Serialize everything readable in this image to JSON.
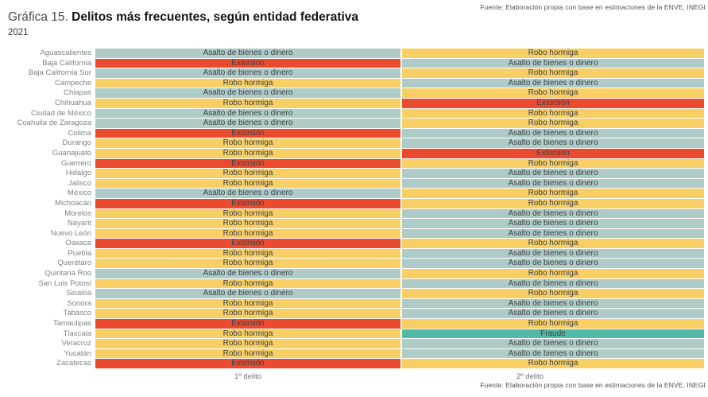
{
  "source": {
    "top": "Fuente: Elaboración propia con base en estimaciones de la ENVE, INEGI",
    "bottom": "Fuente: Elaboración propia con base en estimaciones de la ENVE, INEGI"
  },
  "title": {
    "prefix": "Gráfica 15.",
    "main": "Delitos más frecuentes, según entidad federativa",
    "subtitle": "2021"
  },
  "chart_data": {
    "type": "heatmap",
    "title": "Delitos más frecuentes, según entidad federativa",
    "subtitle": "2021",
    "columns": [
      "1º delito",
      "2º delito"
    ],
    "legend_colors": {
      "Asalto de bienes o dinero": "#aecbc8",
      "Extorsión": "#ea4b2f",
      "Robo hormiga": "#f8cf64",
      "Fraude": "#52b8a8"
    },
    "rows": [
      {
        "state": "Aguascalientes",
        "delito1": "Asalto de bienes o dinero",
        "delito2": "Robo hormiga"
      },
      {
        "state": "Baja California",
        "delito1": "Extorsión",
        "delito2": "Asalto de bienes o dinero"
      },
      {
        "state": "Baja California Sur",
        "delito1": "Asalto de bienes o dinero",
        "delito2": "Robo hormiga"
      },
      {
        "state": "Campeche",
        "delito1": "Robo hormiga",
        "delito2": "Asalto de bienes o dinero"
      },
      {
        "state": "Chiapas",
        "delito1": "Asalto de bienes o dinero",
        "delito2": "Robo hormiga"
      },
      {
        "state": "Chihuahua",
        "delito1": "Robo hormiga",
        "delito2": "Extorsión"
      },
      {
        "state": "Ciudad de México",
        "delito1": "Asalto de bienes o dinero",
        "delito2": "Robo hormiga"
      },
      {
        "state": "Coahuila de Zaragoza",
        "delito1": "Asalto de bienes o dinero",
        "delito2": "Robo hormiga"
      },
      {
        "state": "Colima",
        "delito1": "Extorsión",
        "delito2": "Asalto de bienes o dinero"
      },
      {
        "state": "Durango",
        "delito1": "Robo hormiga",
        "delito2": "Asalto de bienes o dinero"
      },
      {
        "state": "Guanajuato",
        "delito1": "Robo hormiga",
        "delito2": "Extorsión"
      },
      {
        "state": "Guerrero",
        "delito1": "Extorsión",
        "delito2": "Robo hormiga"
      },
      {
        "state": "Hidalgo",
        "delito1": "Robo hormiga",
        "delito2": "Asalto de bienes o dinero"
      },
      {
        "state": "Jalisco",
        "delito1": "Robo hormiga",
        "delito2": "Asalto de bienes o dinero"
      },
      {
        "state": "México",
        "delito1": "Asalto de bienes o dinero",
        "delito2": "Robo hormiga"
      },
      {
        "state": "Michoacán",
        "delito1": "Extorsión",
        "delito2": "Robo hormiga"
      },
      {
        "state": "Morelos",
        "delito1": "Robo hormiga",
        "delito2": "Asalto de bienes o dinero"
      },
      {
        "state": "Nayarit",
        "delito1": "Robo hormiga",
        "delito2": "Asalto de bienes o dinero"
      },
      {
        "state": "Nuevo León",
        "delito1": "Robo hormiga",
        "delito2": "Asalto de bienes o dinero"
      },
      {
        "state": "Oaxaca",
        "delito1": "Extorsión",
        "delito2": "Robo hormiga"
      },
      {
        "state": "Puebla",
        "delito1": "Robo hormiga",
        "delito2": "Asalto de bienes o dinero"
      },
      {
        "state": "Querétaro",
        "delito1": "Robo hormiga",
        "delito2": "Asalto de bienes o dinero"
      },
      {
        "state": "Quintana Roo",
        "delito1": "Asalto de bienes o dinero",
        "delito2": "Robo hormiga"
      },
      {
        "state": "San Luis Potosí",
        "delito1": "Robo hormiga",
        "delito2": "Asalto de bienes o dinero"
      },
      {
        "state": "Sinaloa",
        "delito1": "Asalto de bienes o dinero",
        "delito2": "Robo hormiga"
      },
      {
        "state": "Sonora",
        "delito1": "Robo hormiga",
        "delito2": "Asalto de bienes o dinero"
      },
      {
        "state": "Tabasco",
        "delito1": "Robo hormiga",
        "delito2": "Asalto de bienes o dinero"
      },
      {
        "state": "Tamaulipas",
        "delito1": "Extorsión",
        "delito2": "Robo hormiga"
      },
      {
        "state": "Tlaxcala",
        "delito1": "Robo hormiga",
        "delito2": "Fraude"
      },
      {
        "state": "Veracruz",
        "delito1": "Robo hormiga",
        "delito2": "Asalto de bienes o dinero"
      },
      {
        "state": "Yucatán",
        "delito1": "Robo hormiga",
        "delito2": "Asalto de bienes o dinero"
      },
      {
        "state": "Zacatecas",
        "delito1": "Extorsión",
        "delito2": "Robo hormiga"
      }
    ]
  }
}
